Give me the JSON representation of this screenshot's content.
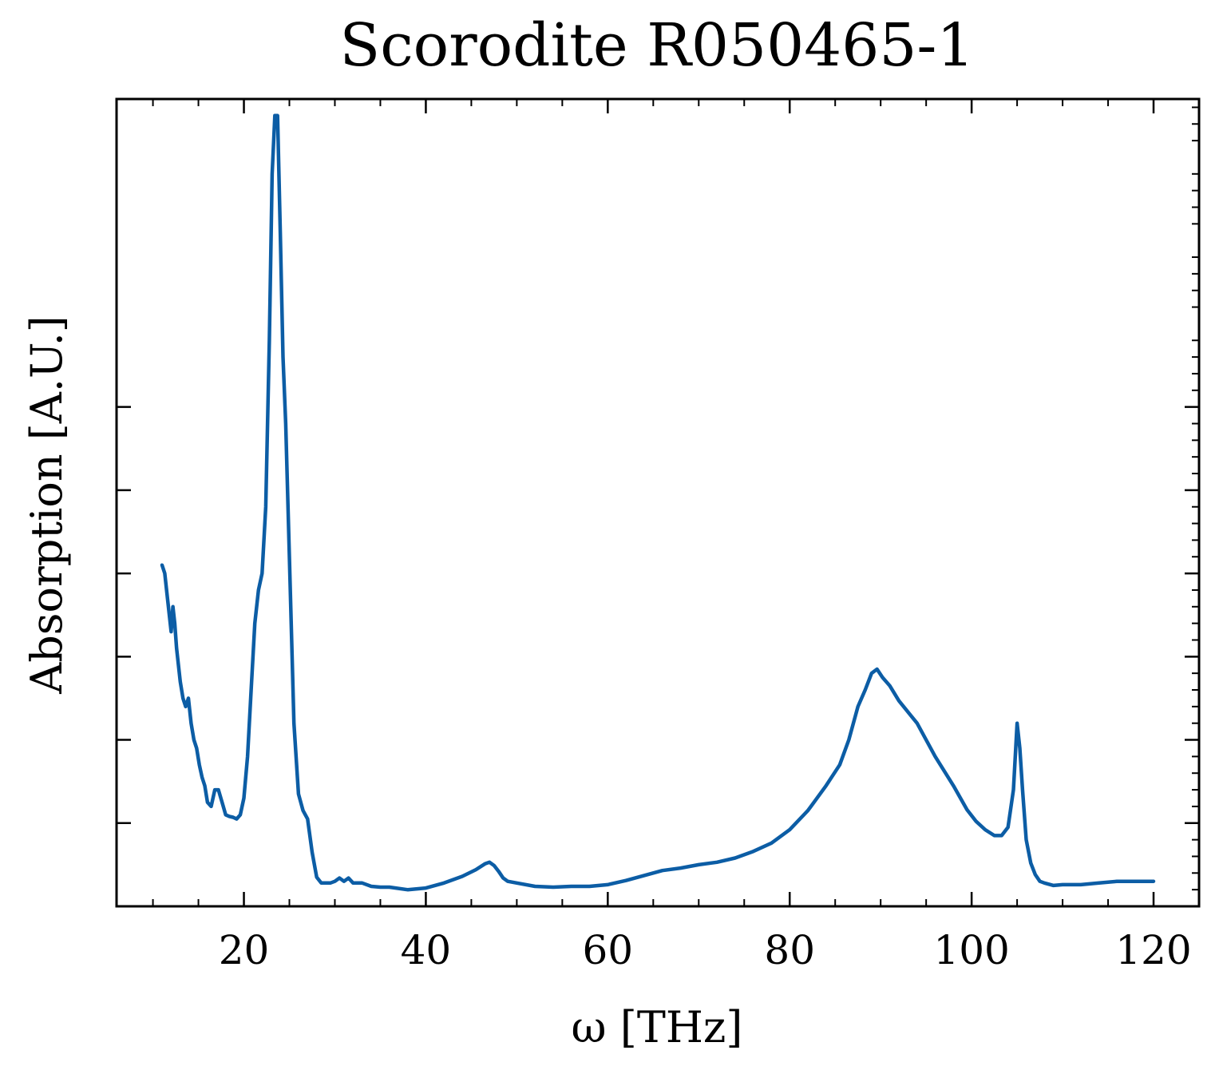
{
  "chart_data": {
    "type": "line",
    "title": "Scorodite R050465-1",
    "xlabel": "ω [THz]",
    "ylabel": "Absorption [A.U.]",
    "xlim": [
      6,
      125
    ],
    "ylim": [
      0.0,
      0.97
    ],
    "x_ticks": [
      20,
      40,
      60,
      80,
      100,
      120
    ],
    "x_tick_labels": [
      "20",
      "40",
      "60",
      "80",
      "100",
      "120"
    ],
    "y_major_ticks": [
      0.0,
      0.1,
      0.2,
      0.3,
      0.4,
      0.5,
      0.6
    ],
    "y_tick_labels_shown": false,
    "grid": false,
    "legend": "none",
    "series": [
      {
        "color": "#0C5DA5",
        "x": [
          11.0,
          11.3,
          11.6,
          11.8,
          12.0,
          12.2,
          12.4,
          12.6,
          12.8,
          13.0,
          13.3,
          13.6,
          13.9,
          14.2,
          14.5,
          14.8,
          15.1,
          15.4,
          15.7,
          16.0,
          16.4,
          16.8,
          17.2,
          17.6,
          18.0,
          18.4,
          18.8,
          19.2,
          19.6,
          20.0,
          20.4,
          20.8,
          21.2,
          21.6,
          22.0,
          22.4,
          22.8,
          23.1,
          23.4,
          23.7,
          24.0,
          24.3,
          24.6,
          25.0,
          25.5,
          26.0,
          26.5,
          27.0,
          27.5,
          28.0,
          28.5,
          29.0,
          29.5,
          30.0,
          30.5,
          31.0,
          31.5,
          32.0,
          33.0,
          34.0,
          35.0,
          36.0,
          38.0,
          40.0,
          42.0,
          44.0,
          45.5,
          46.5,
          47.0,
          47.5,
          48.0,
          48.5,
          49.0,
          50.0,
          52.0,
          54.0,
          56.0,
          58.0,
          60.0,
          62.0,
          64.0,
          66.0,
          68.0,
          70.0,
          72.0,
          74.0,
          76.0,
          78.0,
          80.0,
          82.0,
          84.0,
          85.5,
          86.5,
          87.5,
          88.3,
          89.0,
          89.6,
          90.2,
          91.0,
          92.0,
          94.0,
          96.0,
          98.0,
          99.5,
          100.5,
          101.5,
          102.5,
          103.3,
          104.0,
          104.6,
          105.0,
          105.3,
          105.6,
          106.0,
          106.5,
          107.0,
          107.5,
          108.0,
          109.0,
          110.0,
          112.0,
          114.0,
          116.0,
          118.0,
          120.0
        ],
        "y": [
          0.41,
          0.4,
          0.37,
          0.35,
          0.33,
          0.36,
          0.34,
          0.31,
          0.29,
          0.27,
          0.25,
          0.24,
          0.25,
          0.22,
          0.2,
          0.19,
          0.17,
          0.155,
          0.145,
          0.125,
          0.12,
          0.14,
          0.14,
          0.125,
          0.11,
          0.108,
          0.107,
          0.105,
          0.11,
          0.13,
          0.18,
          0.26,
          0.34,
          0.38,
          0.4,
          0.48,
          0.68,
          0.88,
          0.95,
          0.95,
          0.81,
          0.66,
          0.58,
          0.42,
          0.22,
          0.135,
          0.115,
          0.105,
          0.065,
          0.035,
          0.028,
          0.028,
          0.028,
          0.03,
          0.034,
          0.03,
          0.034,
          0.028,
          0.028,
          0.024,
          0.023,
          0.023,
          0.02,
          0.022,
          0.028,
          0.036,
          0.044,
          0.051,
          0.053,
          0.049,
          0.042,
          0.034,
          0.03,
          0.028,
          0.024,
          0.023,
          0.024,
          0.024,
          0.026,
          0.031,
          0.037,
          0.043,
          0.046,
          0.05,
          0.053,
          0.058,
          0.066,
          0.076,
          0.092,
          0.115,
          0.145,
          0.17,
          0.2,
          0.24,
          0.26,
          0.28,
          0.285,
          0.275,
          0.265,
          0.247,
          0.22,
          0.18,
          0.145,
          0.116,
          0.102,
          0.092,
          0.085,
          0.085,
          0.095,
          0.14,
          0.22,
          0.19,
          0.14,
          0.08,
          0.052,
          0.038,
          0.03,
          0.028,
          0.025,
          0.026,
          0.026,
          0.028,
          0.03,
          0.03,
          0.03
        ]
      }
    ]
  }
}
